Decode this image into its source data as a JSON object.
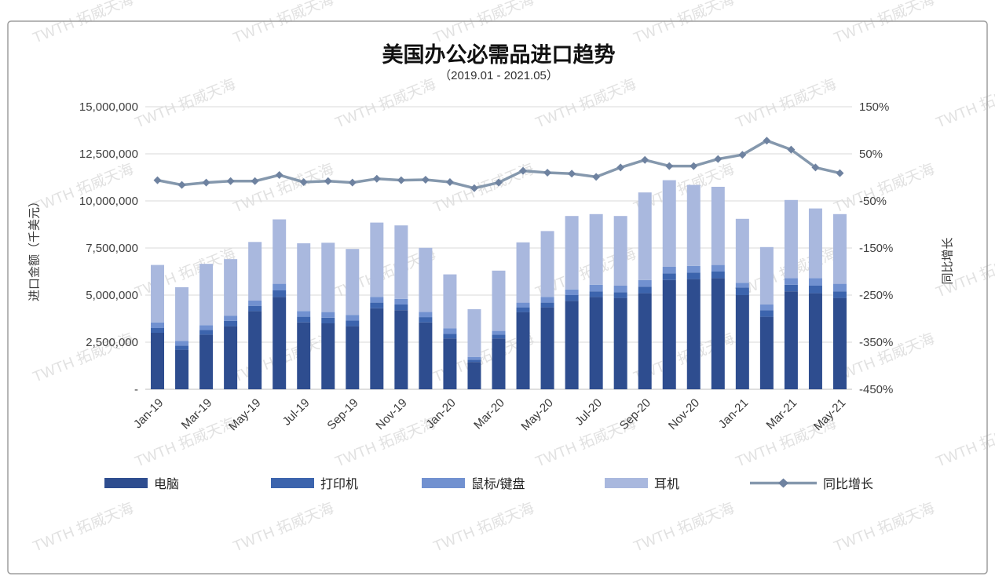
{
  "title": "美国办公必需品进口趋势",
  "subtitle": "（2019.01 - 2021.05）",
  "watermark_text": "TWTH 拓威天海",
  "axes": {
    "left_title": "进口金额（千美元）",
    "right_title": "同比增长",
    "left_ticks": [
      "15,000,000",
      "12,500,000",
      "10,000,000",
      "7,500,000",
      "5,000,000",
      "2,500,000",
      "-"
    ],
    "right_ticks": [
      "150%",
      "50%",
      "-50%",
      "-150%",
      "-250%",
      "-350%",
      "-450%"
    ]
  },
  "colors": {
    "computers": "#2e4d8f",
    "printers": "#3c64ad",
    "mice": "#7191d0",
    "headphones": "#a9b8de",
    "yoy_line": "#8598ad",
    "yoy_marker": "#6e82a0",
    "gridline": "#d9d9d9",
    "axis_line": "#bfbfbf",
    "frame": "#9e9e9e",
    "watermark": "#c9c9c9"
  },
  "legend": [
    {
      "label": "电脑",
      "type": "bar",
      "color": "#2e4d8f"
    },
    {
      "label": "打印机",
      "type": "bar",
      "color": "#3c64ad"
    },
    {
      "label": "鼠标/键盘",
      "type": "bar",
      "color": "#7191d0"
    },
    {
      "label": "耳机",
      "type": "bar",
      "color": "#a9b8de"
    },
    {
      "label": "同比增长",
      "type": "line",
      "color": "#8598ad"
    }
  ],
  "chart_data": {
    "type": "bar",
    "subtype": "stacked-bar-with-line",
    "categories": [
      "Jan-19",
      "Feb-19",
      "Mar-19",
      "Apr-19",
      "May-19",
      "Jun-19",
      "Jul-19",
      "Aug-19",
      "Sep-19",
      "Oct-19",
      "Nov-19",
      "Dec-19",
      "Jan-20",
      "Feb-20",
      "Mar-20",
      "Apr-20",
      "May-20",
      "Jun-20",
      "Jul-20",
      "Aug-20",
      "Sep-20",
      "Oct-20",
      "Nov-20",
      "Dec-20",
      "Jan-21",
      "Feb-21",
      "Mar-21",
      "Apr-21",
      "May-21"
    ],
    "x_tick_labels_shown": [
      "Jan-19",
      "Mar-19",
      "May-19",
      "Jul-19",
      "Sep-19",
      "Nov-19",
      "Jan-20",
      "Mar-20",
      "May-20",
      "Jul-20",
      "Sep-20",
      "Nov-20",
      "Jan-21",
      "Mar-21",
      "May-21"
    ],
    "title": "美国办公必需品进口趋势",
    "subtitle": "（2019.01 - 2021.05）",
    "left_axis": {
      "label": "进口金额（千美元）",
      "min": 0,
      "max": 15000000,
      "step": 2500000,
      "grid": true
    },
    "right_axis": {
      "label": "同比增长",
      "min": -450,
      "max": 150,
      "step": 100,
      "unit": "%"
    },
    "legend_position": "bottom",
    "series": [
      {
        "name": "电脑",
        "type": "bar",
        "axis": "left",
        "values": [
          3000000,
          2100000,
          2900000,
          3350000,
          4150000,
          4900000,
          3550000,
          3500000,
          3350000,
          4300000,
          4200000,
          3550000,
          2700000,
          1450000,
          2700000,
          4100000,
          4350000,
          4700000,
          4900000,
          4850000,
          5100000,
          5800000,
          5850000,
          5900000,
          5000000,
          3850000,
          5200000,
          5100000,
          4850000
        ]
      },
      {
        "name": "打印机",
        "type": "bar",
        "axis": "left",
        "values": [
          250000,
          220000,
          250000,
          280000,
          280000,
          350000,
          300000,
          300000,
          300000,
          300000,
          300000,
          280000,
          250000,
          120000,
          200000,
          250000,
          250000,
          300000,
          300000,
          300000,
          350000,
          350000,
          350000,
          350000,
          400000,
          350000,
          350000,
          400000,
          350000
        ]
      },
      {
        "name": "鼠标/键盘",
        "type": "bar",
        "axis": "left",
        "values": [
          300000,
          250000,
          250000,
          280000,
          280000,
          350000,
          300000,
          300000,
          300000,
          300000,
          300000,
          280000,
          280000,
          150000,
          200000,
          250000,
          300000,
          300000,
          350000,
          350000,
          350000,
          350000,
          350000,
          350000,
          250000,
          300000,
          350000,
          400000,
          400000
        ]
      },
      {
        "name": "耳机",
        "type": "bar",
        "axis": "left",
        "values": [
          3050000,
          2850000,
          3260000,
          3000000,
          3110000,
          3420000,
          3600000,
          3680000,
          3500000,
          3950000,
          3900000,
          3400000,
          2870000,
          2530000,
          3200000,
          3200000,
          3500000,
          3900000,
          3750000,
          3700000,
          4650000,
          4600000,
          4300000,
          4150000,
          3400000,
          3050000,
          4150000,
          3700000,
          3700000
        ]
      },
      {
        "name": "同比增长",
        "type": "line",
        "axis": "right",
        "unit": "%",
        "values": [
          -6,
          -16,
          -11,
          -8,
          -8,
          5,
          -10,
          -8,
          -11,
          -3,
          -6,
          -5,
          -10,
          -23,
          -11,
          14,
          10,
          8,
          1,
          21,
          37,
          24,
          24,
          39,
          48,
          78,
          59,
          21,
          9
        ]
      }
    ]
  }
}
